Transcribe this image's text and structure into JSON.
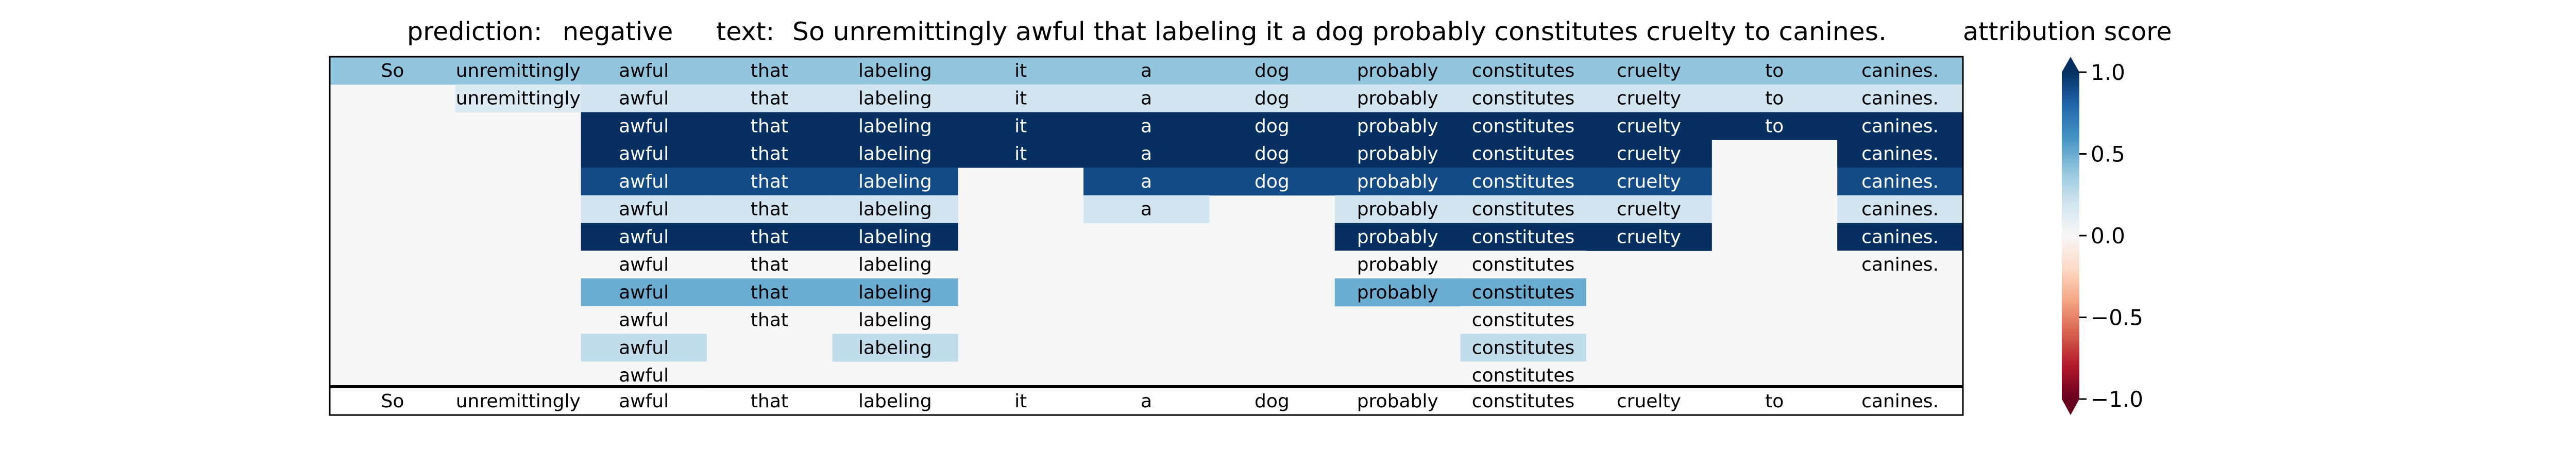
{
  "header": {
    "prediction_label": "prediction:",
    "prediction_value": "negative",
    "text_label": "text:",
    "text_value": "So unremittingly awful that labeling it a dog probably constitutes cruelty to canines.",
    "colorbar_label": "attribution score"
  },
  "chart_data": {
    "type": "heatmap",
    "colormap": "RdBu",
    "vmin": -1.0,
    "vmax": 1.0,
    "background_color": "#f5f6f5",
    "columns": [
      "So",
      "unremittingly",
      "awful",
      "that",
      "labeling",
      "it",
      "a",
      "dog",
      "probably",
      "constitutes",
      "cruelty",
      "to",
      "canines."
    ],
    "rows": [
      [
        0.4,
        0.4,
        0.4,
        0.4,
        0.4,
        0.4,
        0.4,
        0.4,
        0.4,
        0.4,
        0.4,
        0.4,
        0.4
      ],
      [
        null,
        0.15,
        0.2,
        0.2,
        0.2,
        0.2,
        0.2,
        0.2,
        0.2,
        0.2,
        0.2,
        0.2,
        0.2
      ],
      [
        null,
        null,
        1.0,
        1.0,
        1.0,
        1.0,
        1.0,
        1.0,
        1.0,
        1.0,
        1.0,
        1.0,
        1.0
      ],
      [
        null,
        null,
        1.0,
        1.0,
        1.0,
        1.0,
        1.0,
        1.0,
        1.0,
        1.0,
        1.0,
        null,
        1.0
      ],
      [
        null,
        null,
        0.9,
        0.9,
        0.9,
        null,
        0.9,
        0.9,
        0.9,
        0.9,
        0.9,
        null,
        0.9
      ],
      [
        null,
        null,
        0.2,
        0.2,
        0.2,
        null,
        0.2,
        null,
        0.2,
        0.2,
        0.2,
        null,
        0.2
      ],
      [
        null,
        null,
        1.0,
        1.0,
        1.0,
        null,
        null,
        null,
        1.0,
        1.0,
        1.0,
        null,
        1.0
      ],
      [
        null,
        null,
        0.0,
        0.0,
        0.0,
        null,
        null,
        null,
        0.0,
        0.0,
        null,
        null,
        0.0
      ],
      [
        null,
        null,
        0.5,
        0.5,
        0.5,
        null,
        null,
        null,
        0.5,
        0.5,
        null,
        null,
        null
      ],
      [
        null,
        null,
        0.0,
        0.0,
        0.0,
        null,
        null,
        null,
        null,
        0.0,
        null,
        null,
        null
      ],
      [
        null,
        null,
        0.25,
        null,
        0.25,
        null,
        null,
        null,
        null,
        0.25,
        null,
        null,
        null
      ],
      [
        null,
        null,
        0.0,
        null,
        null,
        null,
        null,
        null,
        null,
        0.0,
        null,
        null,
        null
      ]
    ],
    "bottom_row": [
      "So",
      "unremittingly",
      "awful",
      "that",
      "labeling",
      "it",
      "a",
      "dog",
      "probably",
      "constitutes",
      "cruelty",
      "to",
      "canines."
    ],
    "colorbar_ticks": [
      "1.0",
      "0.5",
      "0.0",
      "−0.5",
      "−1.0"
    ],
    "colorbar_tick_values": [
      1.0,
      0.5,
      0.0,
      -0.5,
      -1.0
    ]
  }
}
